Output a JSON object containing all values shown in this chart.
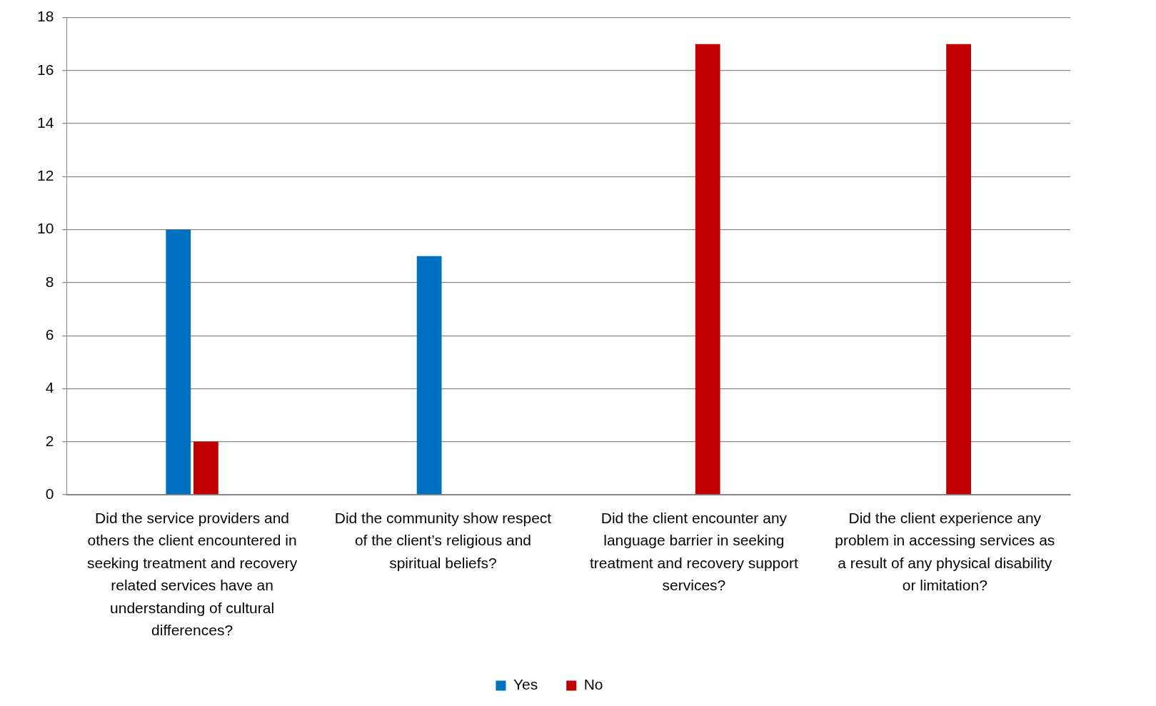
{
  "chart_data": {
    "type": "bar",
    "categories": [
      "Did the service providers and others the client encountered in seeking treatment and recovery related services have an understanding of cultural differences?",
      "Did the community show respect of the client’s religious and spiritual beliefs?",
      "Did the client encounter any language barrier in seeking treatment and recovery support services?",
      "Did the client experience any problem in accessing services as a result of any physical disability or limitation?"
    ],
    "series": [
      {
        "name": "Yes",
        "color": "#0070c0",
        "values": [
          10,
          9,
          null,
          null
        ]
      },
      {
        "name": "No",
        "color": "#c00000",
        "values": [
          2,
          null,
          17,
          17
        ]
      }
    ],
    "ylim": [
      0,
      18
    ],
    "yticks": [
      0,
      2,
      4,
      6,
      8,
      10,
      12,
      14,
      16,
      18
    ],
    "grid": "y",
    "legend": "bottom"
  }
}
